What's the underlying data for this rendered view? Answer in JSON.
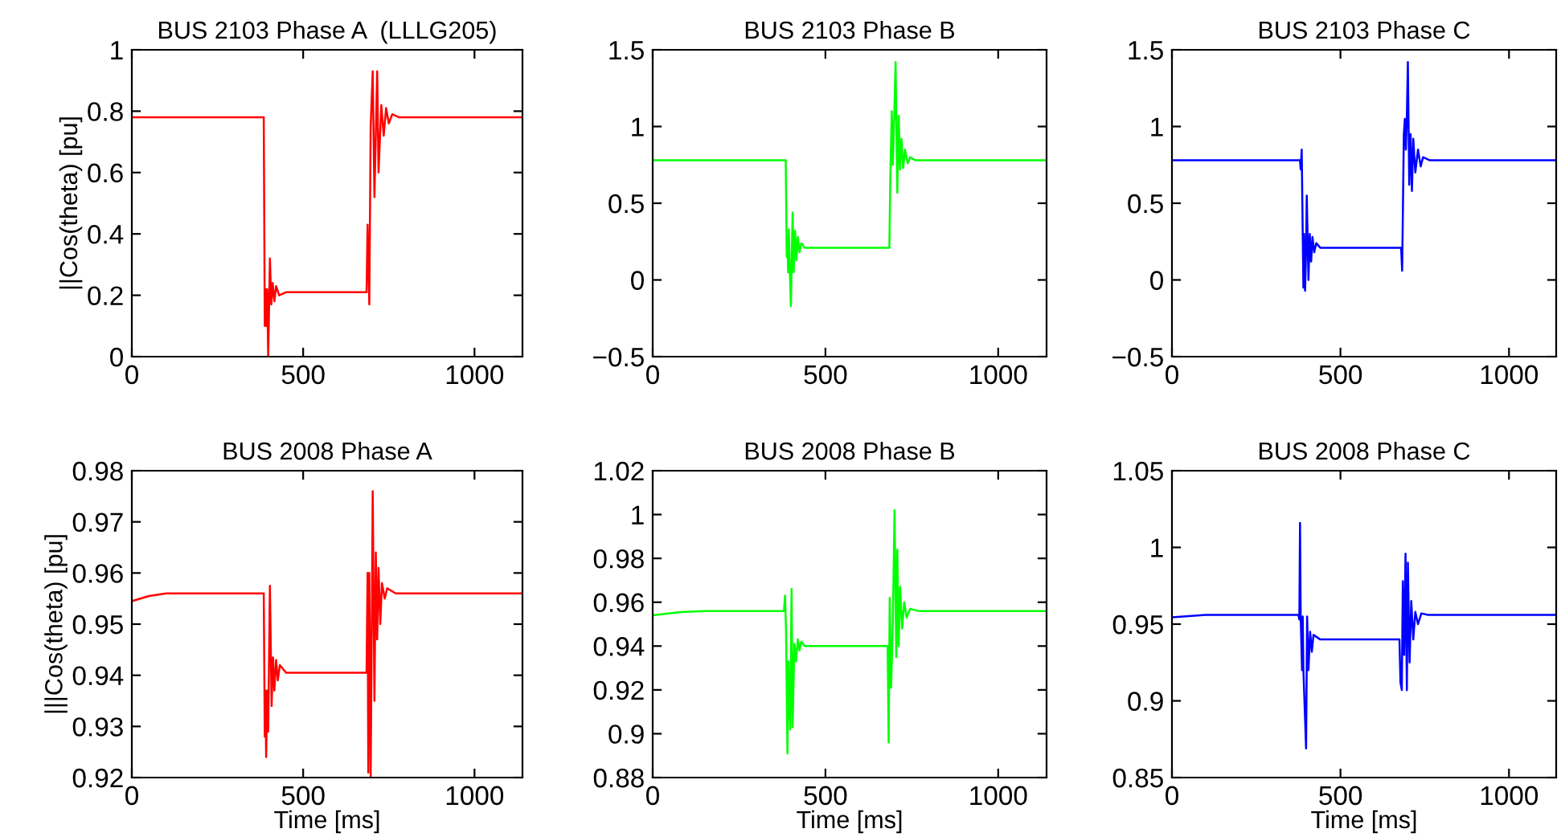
{
  "chart_data": [
    {
      "type": "line",
      "title": "BUS 2103 Phase A  (LLLG205)",
      "ylabel": "||Cos(theta) [pu]",
      "xlim": [
        0,
        1140
      ],
      "xticks": [
        0,
        500,
        1000
      ],
      "ylim": [
        0,
        1
      ],
      "yticks": [
        0,
        0.2,
        0.4,
        0.6,
        0.8,
        1
      ],
      "grid": false,
      "series": [
        {
          "color": "#ff0000",
          "x": [
            0,
            385,
            388,
            390,
            393,
            395,
            398,
            403,
            407,
            411,
            416,
            421,
            430,
            450,
            685,
            688,
            693,
            697,
            703,
            708,
            716,
            720,
            728,
            735,
            742,
            750,
            760,
            780,
            1140
          ],
          "values": [
            0.78,
            0.78,
            0.1,
            0.22,
            0.1,
            0.22,
            0.0,
            0.32,
            0.17,
            0.24,
            0.18,
            0.23,
            0.2,
            0.21,
            0.21,
            0.43,
            0.17,
            0.75,
            0.93,
            0.52,
            0.93,
            0.6,
            0.82,
            0.72,
            0.81,
            0.76,
            0.79,
            0.78,
            0.78
          ]
        }
      ]
    },
    {
      "type": "line",
      "title": "BUS 2103 Phase B",
      "xlim": [
        0,
        1140
      ],
      "xticks": [
        0,
        500,
        1000
      ],
      "ylim": [
        -0.5,
        1.5
      ],
      "yticks": [
        {
          "value": -0.5,
          "label": "−0.5"
        },
        0,
        0.5,
        1,
        1.5
      ],
      "grid": false,
      "series": [
        {
          "color": "#00ff00",
          "x": [
            0,
            385,
            388,
            390,
            392,
            394,
            397,
            400,
            405,
            408,
            412,
            416,
            420,
            425,
            430,
            440,
            685,
            688,
            692,
            695,
            699,
            703,
            708,
            712,
            716,
            720,
            725,
            730,
            738,
            745,
            760,
            1140
          ],
          "values": [
            0.78,
            0.78,
            0.15,
            0.27,
            0.05,
            0.33,
            0.05,
            -0.17,
            0.44,
            0.05,
            0.32,
            0.13,
            0.28,
            0.18,
            0.24,
            0.21,
            0.21,
            0.7,
            1.1,
            0.75,
            1.05,
            1.42,
            0.57,
            1.07,
            0.72,
            0.92,
            0.73,
            0.85,
            0.76,
            0.8,
            0.78,
            0.78
          ]
        }
      ]
    },
    {
      "type": "line",
      "title": "BUS 2103 Phase C",
      "xlim": [
        0,
        1140
      ],
      "xticks": [
        0,
        500,
        1000
      ],
      "ylim": [
        -0.5,
        1.5
      ],
      "yticks": [
        {
          "value": -0.5,
          "label": "−0.5"
        },
        0,
        0.5,
        1,
        1.5
      ],
      "grid": false,
      "series": [
        {
          "color": "#0000ff",
          "x": [
            0,
            380,
            382,
            385,
            388,
            390,
            392,
            395,
            398,
            400,
            405,
            409,
            413,
            417,
            422,
            428,
            440,
            680,
            683,
            688,
            691,
            694,
            697,
            700,
            704,
            708,
            712,
            716,
            722,
            730,
            738,
            745,
            765,
            1140
          ],
          "values": [
            0.78,
            0.78,
            0.72,
            0.85,
            0.3,
            -0.05,
            0.3,
            -0.07,
            0.2,
            0.55,
            0.0,
            0.3,
            0.12,
            0.28,
            0.18,
            0.24,
            0.21,
            0.21,
            0.06,
            0.95,
            1.05,
            0.85,
            1.07,
            1.42,
            0.62,
            0.95,
            0.58,
            0.92,
            0.7,
            0.85,
            0.74,
            0.8,
            0.78,
            0.78
          ]
        }
      ]
    },
    {
      "type": "line",
      "title": "BUS 2008 Phase A",
      "xlabel": "Time [ms]",
      "ylabel": "|||Cos(theta) [pu]",
      "xlim": [
        0,
        1140
      ],
      "xticks": [
        0,
        500,
        1000
      ],
      "ylim": [
        0.92,
        0.98
      ],
      "yticks": [
        0.92,
        0.93,
        0.94,
        0.95,
        0.96,
        0.97,
        0.98
      ],
      "grid": false,
      "series": [
        {
          "color": "#ff0000",
          "x": [
            0,
            50,
            100,
            385,
            388,
            390,
            392,
            395,
            398,
            403,
            408,
            412,
            416,
            421,
            426,
            432,
            450,
            685,
            688,
            690,
            693,
            697,
            703,
            708,
            712,
            716,
            720,
            725,
            730,
            738,
            745,
            770,
            1140
          ],
          "values": [
            0.9545,
            0.9555,
            0.956,
            0.956,
            0.928,
            0.937,
            0.924,
            0.937,
            0.929,
            0.9575,
            0.934,
            0.9435,
            0.937,
            0.943,
            0.939,
            0.942,
            0.9405,
            0.9405,
            0.96,
            0.921,
            0.96,
            0.92,
            0.976,
            0.935,
            0.964,
            0.947,
            0.961,
            0.95,
            0.958,
            0.955,
            0.957,
            0.956,
            0.956
          ]
        }
      ]
    },
    {
      "type": "line",
      "title": "BUS 2008 Phase B",
      "xlabel": "Time [ms]",
      "xlim": [
        0,
        1140
      ],
      "xticks": [
        0,
        500,
        1000
      ],
      "ylim": [
        0.88,
        1.02
      ],
      "yticks": [
        0.88,
        0.9,
        0.92,
        0.94,
        0.96,
        0.98,
        1,
        1.02
      ],
      "grid": false,
      "series": [
        {
          "color": "#00ff00",
          "x": [
            0,
            80,
            150,
            380,
            383,
            386,
            390,
            393,
            398,
            402,
            405,
            410,
            415,
            420,
            425,
            430,
            440,
            680,
            683,
            686,
            690,
            695,
            700,
            705,
            708,
            712,
            716,
            722,
            728,
            735,
            745,
            770,
            1140
          ],
          "values": [
            0.954,
            0.9555,
            0.956,
            0.956,
            0.963,
            0.947,
            0.891,
            0.933,
            0.902,
            0.966,
            0.903,
            0.941,
            0.933,
            0.943,
            0.938,
            0.942,
            0.94,
            0.94,
            0.896,
            0.962,
            0.921,
            0.95,
            1.002,
            0.935,
            0.984,
            0.94,
            0.967,
            0.948,
            0.96,
            0.953,
            0.957,
            0.956,
            0.956
          ]
        }
      ]
    },
    {
      "type": "line",
      "title": "BUS 2008 Phase C",
      "xlabel": "Time [ms]",
      "xlim": [
        0,
        1140
      ],
      "xticks": [
        0,
        500,
        1000
      ],
      "ylim": [
        0.85,
        1.05
      ],
      "yticks": [
        0.85,
        0.9,
        0.95,
        1,
        1.05
      ],
      "grid": false,
      "series": [
        {
          "color": "#0000ff",
          "x": [
            0,
            100,
            375,
            378,
            380,
            382,
            386,
            388,
            390,
            398,
            401,
            405,
            410,
            415,
            420,
            440,
            675,
            678,
            682,
            685,
            689,
            693,
            697,
            700,
            705,
            710,
            716,
            722,
            730,
            740,
            760,
            1140
          ],
          "values": [
            0.9545,
            0.956,
            0.956,
            0.953,
            1.016,
            0.955,
            0.92,
            0.955,
            0.92,
            0.869,
            0.955,
            0.92,
            0.945,
            0.932,
            0.943,
            0.94,
            0.94,
            0.912,
            0.907,
            0.978,
            0.93,
            0.996,
            0.907,
            0.99,
            0.925,
            0.965,
            0.94,
            0.958,
            0.95,
            0.957,
            0.956,
            0.956
          ]
        }
      ]
    }
  ]
}
